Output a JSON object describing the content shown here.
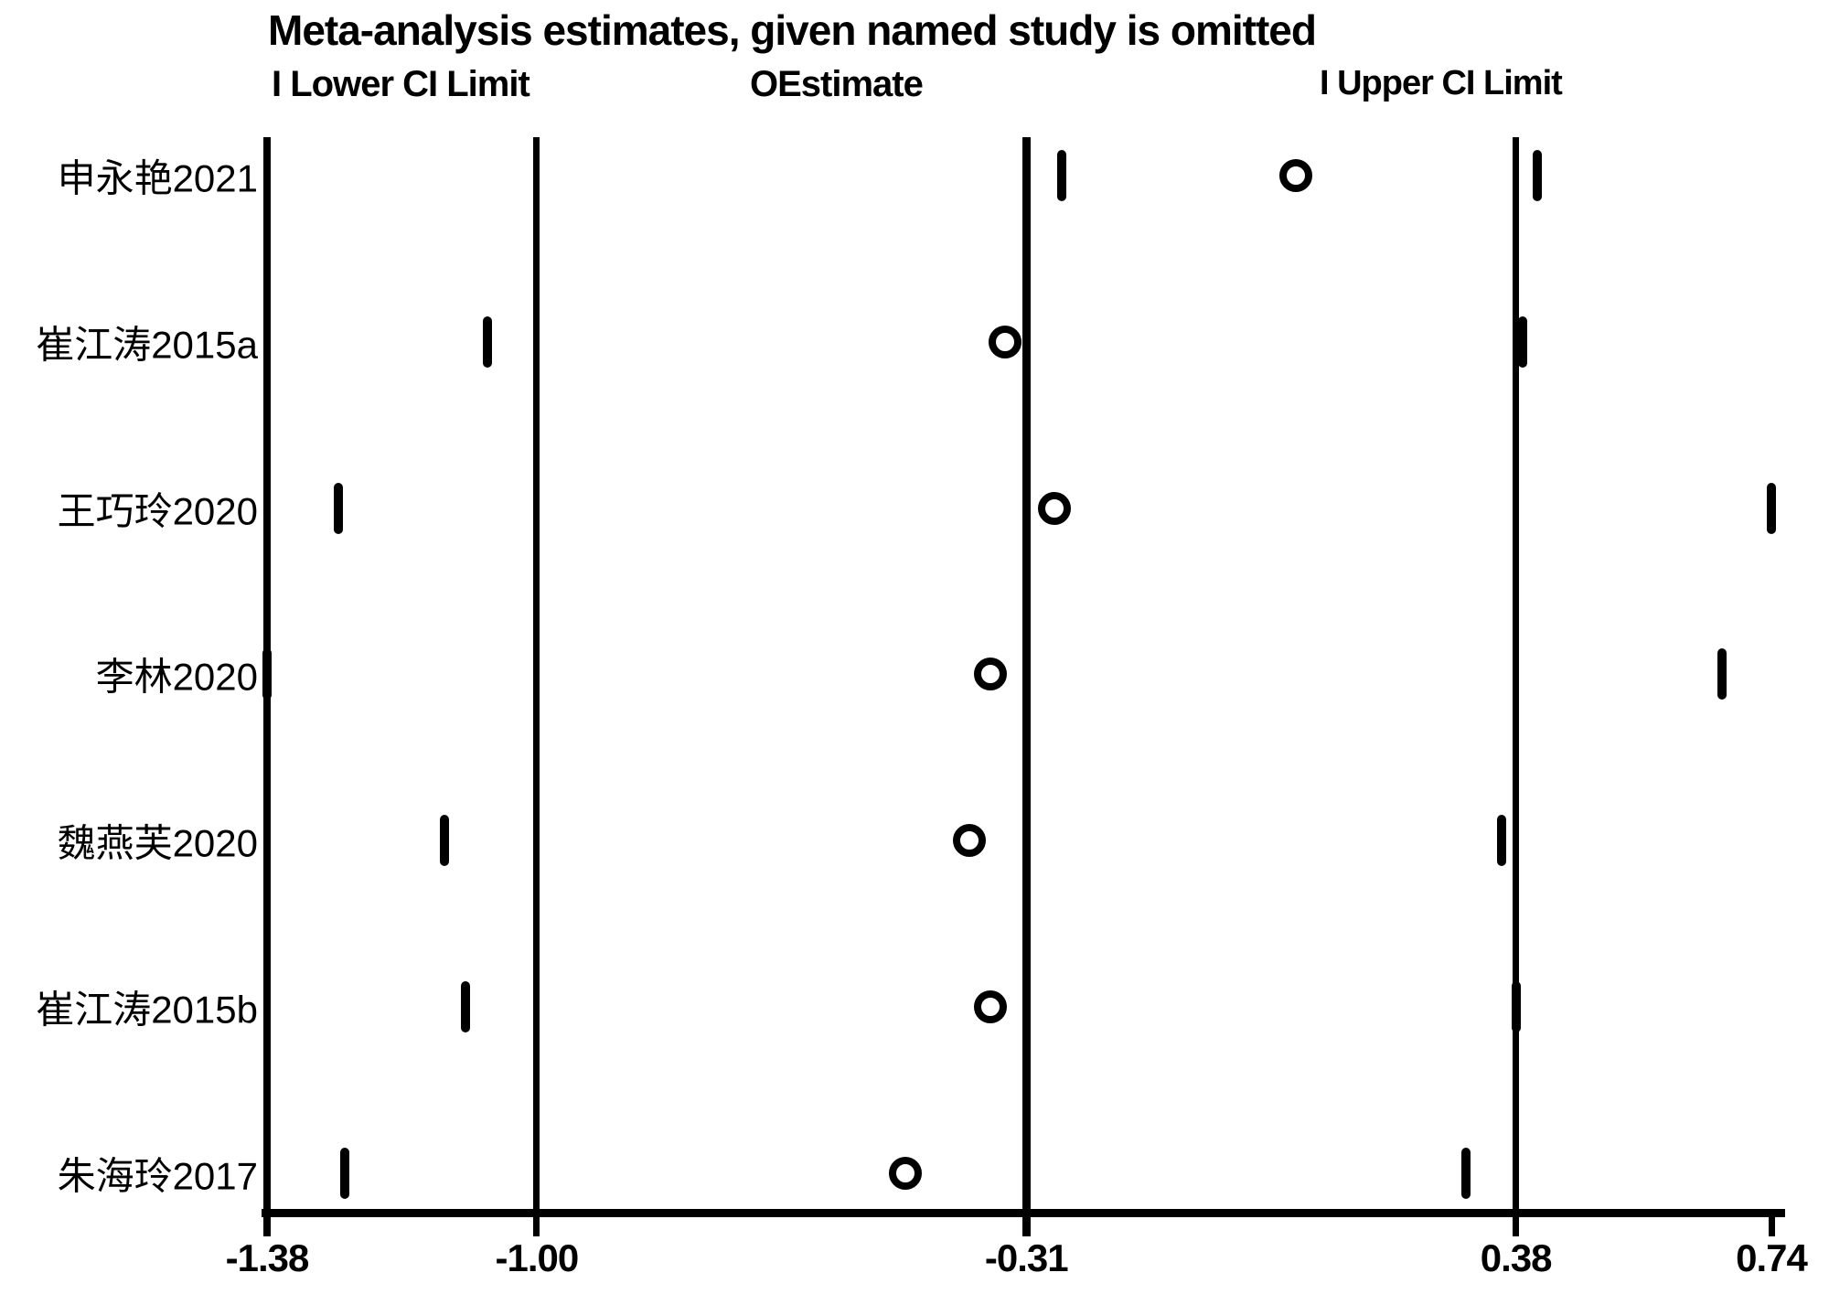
{
  "colors": {
    "foreground": "#000000",
    "background": "#ffffff"
  },
  "chart_data": {
    "type": "scatter",
    "title": "Meta-analysis estimates, given named study is omitted",
    "legend": [
      "I Lower CI Limit",
      "OEstimate",
      "I Upper CI Limit"
    ],
    "legend_meaning": [
      {
        "marker": "I",
        "label": "Lower CI Limit"
      },
      {
        "marker": "O",
        "label": "Estimate"
      },
      {
        "marker": "I",
        "label": "Upper CI Limit"
      }
    ],
    "axis": {
      "x_min": -1.38,
      "x_max": 0.74,
      "tick_values": [
        -1.38,
        -1.0,
        -0.31,
        0.38,
        0.74
      ],
      "tick_labels": [
        "-1.38",
        "-1.00",
        "-0.31",
        "0.38",
        "0.74"
      ],
      "grid": false
    },
    "overall": {
      "lower": -1.0,
      "estimate": -0.31,
      "upper": 0.38
    },
    "studies": [
      {
        "label": "申永艳2021",
        "lower": -0.26,
        "estimate": 0.07,
        "upper": 0.41
      },
      {
        "label": "崔江涛2015a",
        "lower": -1.07,
        "estimate": -0.34,
        "upper": 0.39
      },
      {
        "label": "王巧玲2020",
        "lower": -1.28,
        "estimate": -0.27,
        "upper": 0.74
      },
      {
        "label": "李林2020",
        "lower": -1.38,
        "estimate": -0.36,
        "upper": 0.67
      },
      {
        "label": "魏燕芙2020",
        "lower": -1.13,
        "estimate": -0.39,
        "upper": 0.36
      },
      {
        "label": "崔江涛2015b",
        "lower": -1.1,
        "estimate": -0.36,
        "upper": 0.38
      },
      {
        "label": "朱海玲2017",
        "lower": -1.27,
        "estimate": -0.48,
        "upper": 0.31
      }
    ]
  }
}
